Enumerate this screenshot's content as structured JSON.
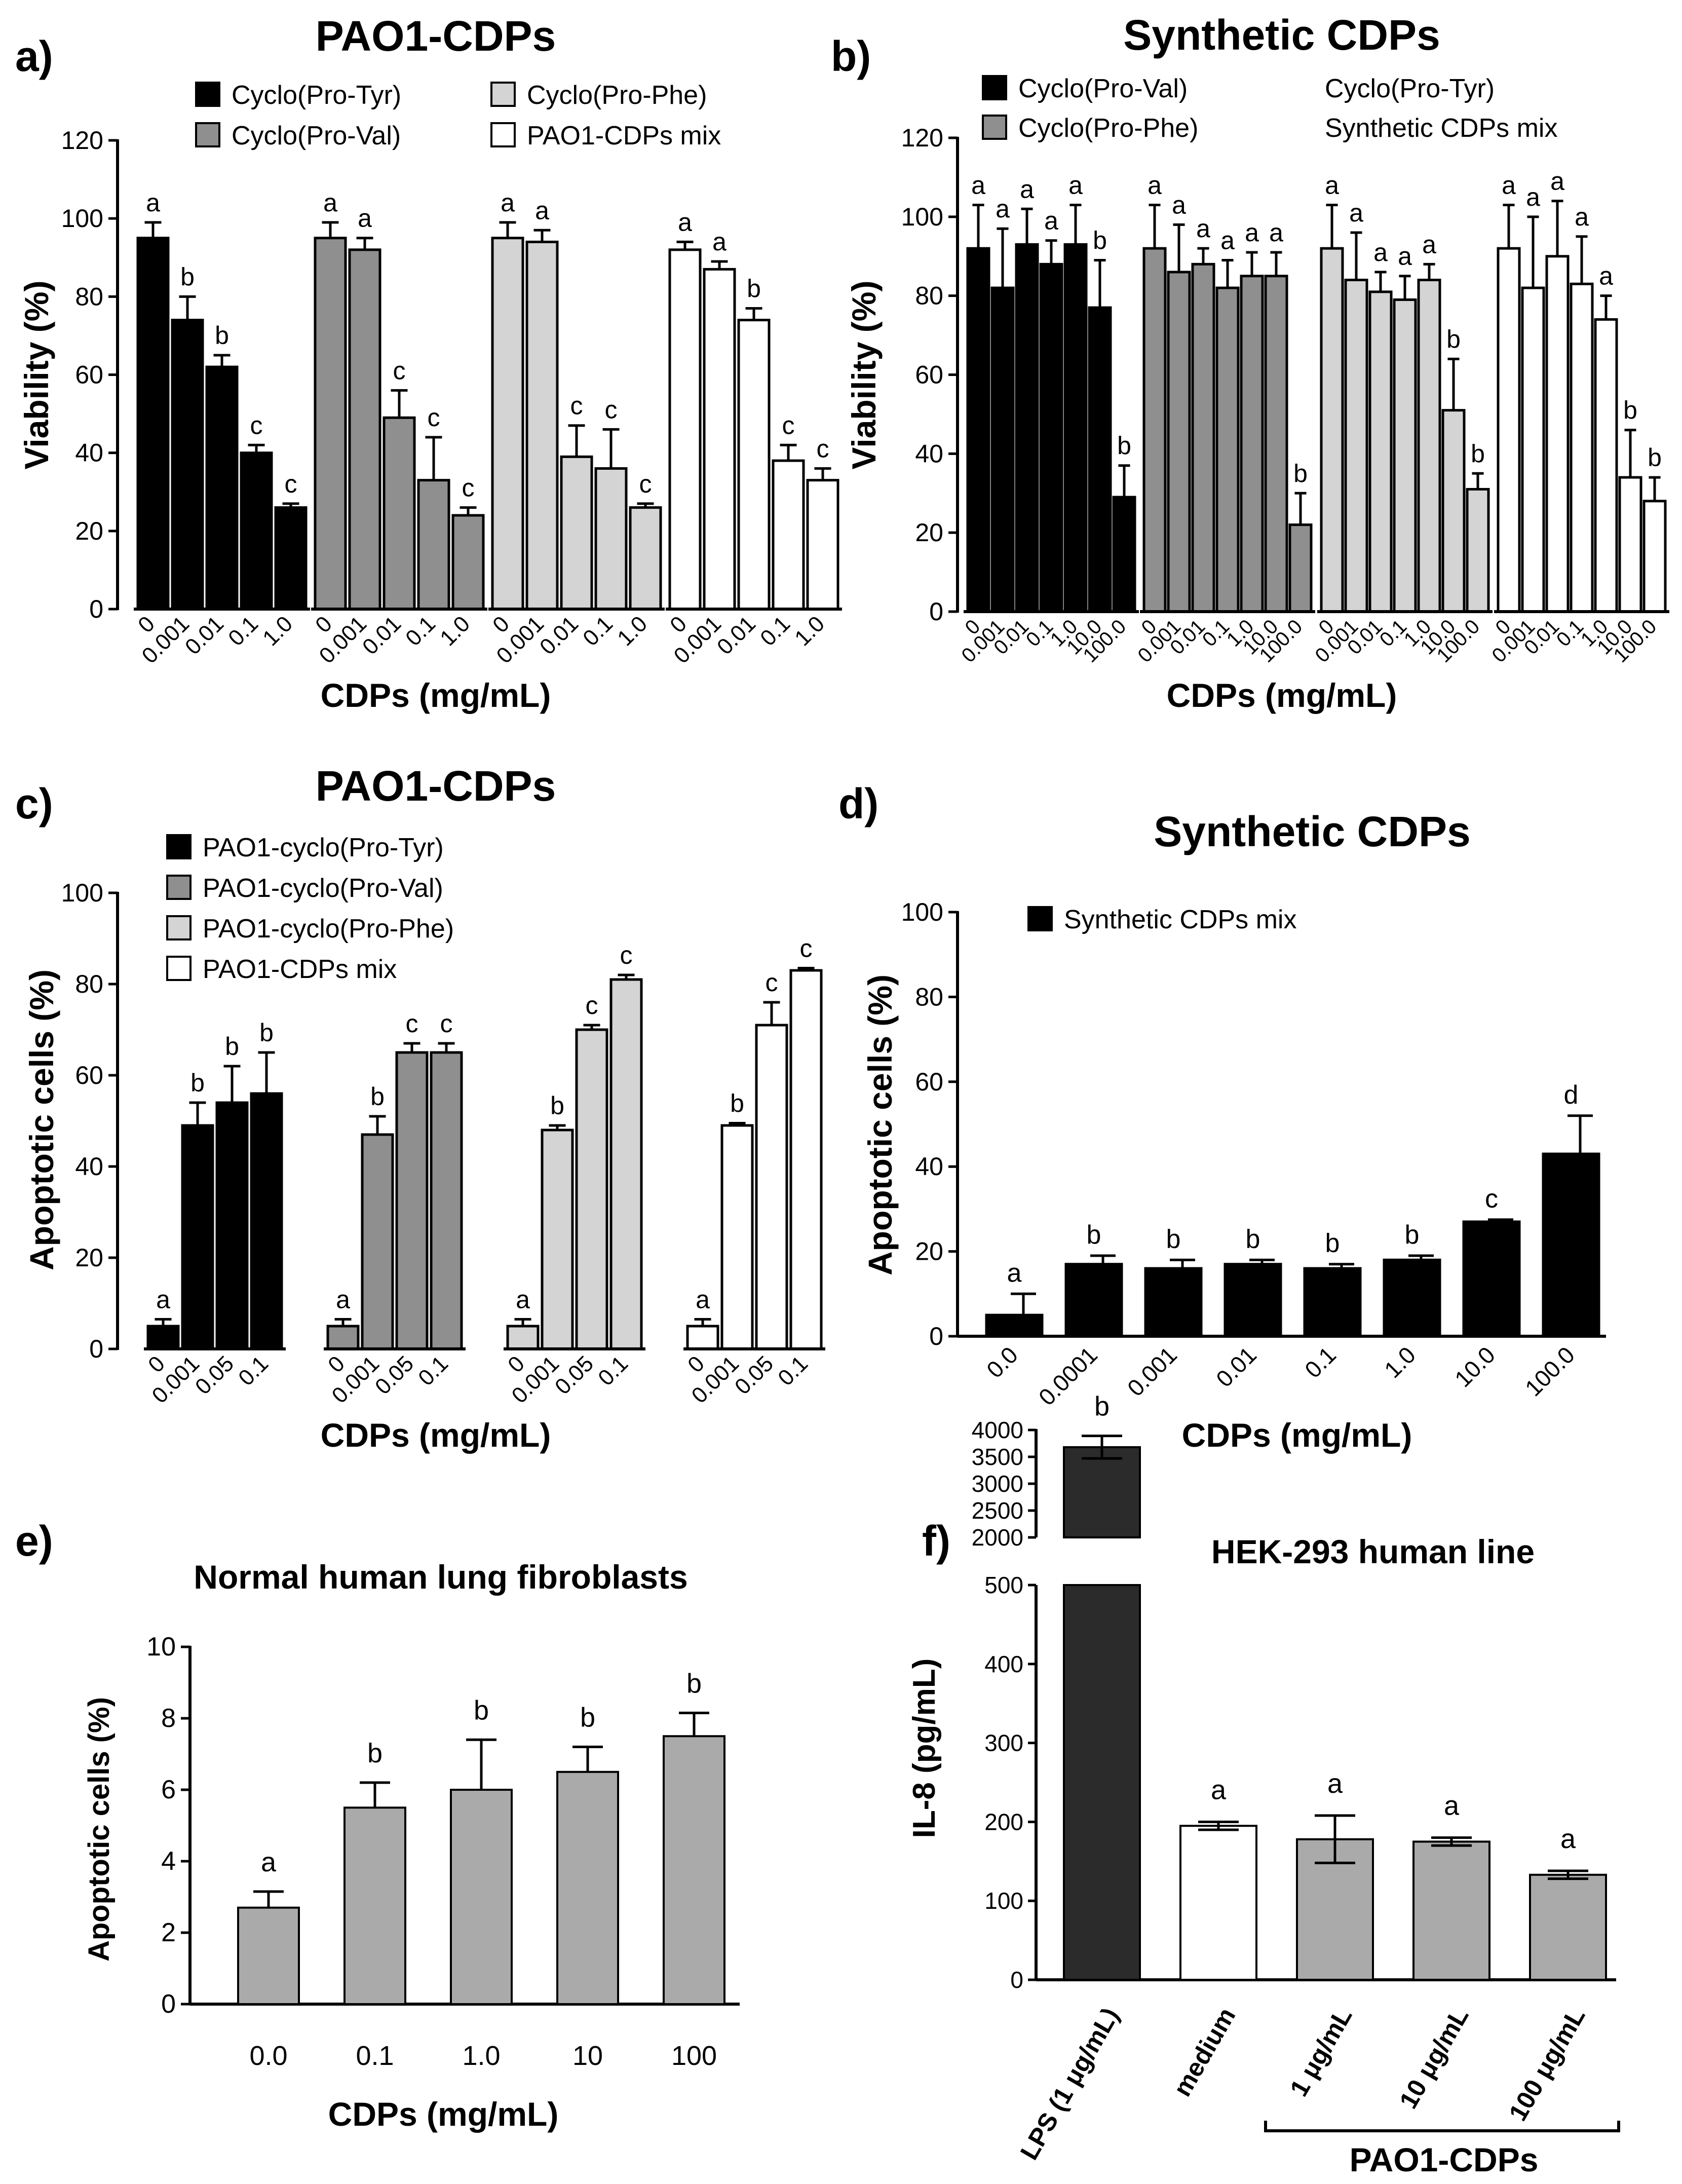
{
  "chart_data": [
    {
      "panel": "a)",
      "type": "bar",
      "title": "PAO1-CDPs",
      "ylabel": "Viability  (%)",
      "xlabel": "CDPs  (mg/mL)",
      "ylim": [
        0,
        120
      ],
      "yticks": [
        "0",
        "20",
        "40",
        "60",
        "80",
        "100",
        "120"
      ],
      "legend": [
        "Cyclo(Pro-Tyr)",
        "Cyclo(Pro-Val)",
        "Cyclo(Pro-Phe)",
        "PAO1-CDPs mix"
      ],
      "legend_placement": "top",
      "colors": [
        "#000000",
        "#8f8f8f",
        "#d4d4d4",
        "#ffffff"
      ],
      "groups": [
        {
          "series": "Cyclo(Pro-Tyr)",
          "categories": [
            "0",
            "0.001",
            "0.01",
            "0.1",
            "1.0"
          ],
          "values": [
            95,
            74,
            62,
            40,
            26
          ],
          "errors": [
            4,
            6,
            3,
            2,
            1
          ],
          "letters": [
            "a",
            "b",
            "b",
            "c",
            "c"
          ]
        },
        {
          "series": "Cyclo(Pro-Val)",
          "categories": [
            "0",
            "0.001",
            "0.01",
            "0.1",
            "1.0"
          ],
          "values": [
            95,
            92,
            49,
            33,
            24
          ],
          "errors": [
            4,
            3,
            7,
            11,
            2
          ],
          "letters": [
            "a",
            "a",
            "c",
            "c",
            "c"
          ]
        },
        {
          "series": "Cyclo(Pro-Phe)",
          "categories": [
            "0",
            "0.001",
            "0.01",
            "0.1",
            "1.0"
          ],
          "values": [
            95,
            94,
            39,
            36,
            26
          ],
          "errors": [
            4,
            3,
            8,
            10,
            1
          ],
          "letters": [
            "a",
            "a",
            "c",
            "c",
            "c"
          ]
        },
        {
          "series": "PAO1-CDPs mix",
          "categories": [
            "0",
            "0.001",
            "0.01",
            "0.1",
            "1.0"
          ],
          "values": [
            92,
            87,
            74,
            38,
            33
          ],
          "errors": [
            2,
            2,
            3,
            4,
            3
          ],
          "letters": [
            "a",
            "a",
            "b",
            "c",
            "c"
          ]
        }
      ]
    },
    {
      "panel": "b)",
      "type": "bar",
      "title": "Synthetic CDPs",
      "ylabel": "Viability  (%)",
      "xlabel": "CDPs  (mg/mL)",
      "ylim": [
        0,
        120
      ],
      "yticks": [
        "0",
        "20",
        "40",
        "60",
        "80",
        "100",
        "120"
      ],
      "legend": [
        "Cyclo(Pro-Val)",
        "Cyclo(Pro-Phe)",
        "Cyclo(Pro-Tyr)",
        "Synthetic CDPs mix"
      ],
      "legend_placement": "top",
      "colors": [
        "#000000",
        "#8f8f8f",
        "#d4d4d4",
        "#ffffff"
      ],
      "groups": [
        {
          "series": "Cyclo(Pro-Val)",
          "categories": [
            "0",
            "0.001",
            "0.01",
            "0.1",
            "1.0",
            "10.0",
            "100.0"
          ],
          "values": [
            92,
            82,
            93,
            88,
            93,
            77,
            29
          ],
          "errors": [
            11,
            15,
            9,
            6,
            10,
            12,
            8
          ],
          "letters": [
            "a",
            "a",
            "a",
            "a",
            "a",
            "b",
            "b"
          ]
        },
        {
          "series": "Cyclo(Pro-Phe)",
          "categories": [
            "0",
            "0.001",
            "0.01",
            "0.1",
            "1.0",
            "10.0",
            "100.0"
          ],
          "values": [
            92,
            86,
            88,
            82,
            85,
            85,
            22
          ],
          "errors": [
            11,
            12,
            4,
            7,
            6,
            6,
            8
          ],
          "letters": [
            "a",
            "a",
            "a",
            "a",
            "a",
            "a",
            "b"
          ]
        },
        {
          "series": "Cyclo(Pro-Tyr)",
          "categories": [
            "0",
            "0.001",
            "0.01",
            "0.1",
            "1.0",
            "10.0",
            "100.0"
          ],
          "values": [
            92,
            84,
            81,
            79,
            84,
            51,
            31
          ],
          "errors": [
            11,
            12,
            5,
            6,
            4,
            13,
            4
          ],
          "letters": [
            "a",
            "a",
            "a",
            "a",
            "a",
            "b",
            "b"
          ]
        },
        {
          "series": "Synthetic CDPs mix",
          "categories": [
            "0",
            "0.001",
            "0.01",
            "0.1",
            "1.0",
            "10.0",
            "100.0"
          ],
          "values": [
            92,
            82,
            90,
            83,
            74,
            34,
            28
          ],
          "errors": [
            11,
            18,
            14,
            12,
            6,
            12,
            6
          ],
          "letters": [
            "a",
            "a",
            "a",
            "a",
            "a",
            "b",
            "b"
          ]
        }
      ]
    },
    {
      "panel": "c)",
      "type": "bar",
      "title": "PAO1-CDPs",
      "ylabel": "Apoptotic cells (%)",
      "xlabel": "CDPs  (mg/mL)",
      "ylim": [
        0,
        100
      ],
      "yticks": [
        "0",
        "20",
        "40",
        "60",
        "80",
        "100"
      ],
      "legend": [
        "PAO1-cyclo(Pro-Tyr)",
        "PAO1-cyclo(Pro-Val)",
        "PAO1-cyclo(Pro-Phe)",
        "PAO1-CDPs mix"
      ],
      "legend_placement": "top-left",
      "colors": [
        "#000000",
        "#8f8f8f",
        "#d4d4d4",
        "#ffffff"
      ],
      "groups": [
        {
          "series": "PAO1-cyclo(Pro-Tyr)",
          "categories": [
            "0",
            "0.001",
            "0.05",
            "0.1"
          ],
          "values": [
            5,
            49,
            54,
            56
          ],
          "errors": [
            1.5,
            5,
            8,
            9
          ],
          "letters": [
            "a",
            "b",
            "b",
            "b"
          ]
        },
        {
          "series": "PAO1-cyclo(Pro-Val)",
          "categories": [
            "0",
            "0.001",
            "0.05",
            "0.1"
          ],
          "values": [
            5,
            47,
            65,
            65
          ],
          "errors": [
            1.5,
            4,
            2,
            2
          ],
          "letters": [
            "a",
            "b",
            "c",
            "c"
          ]
        },
        {
          "series": "PAO1-cyclo(Pro-Phe)",
          "categories": [
            "0",
            "0.001",
            "0.05",
            "0.1"
          ],
          "values": [
            5,
            48,
            70,
            81
          ],
          "errors": [
            1.5,
            1,
            1,
            1
          ],
          "letters": [
            "a",
            "b",
            "c",
            "c"
          ]
        },
        {
          "series": "PAO1-CDPs mix",
          "categories": [
            "0",
            "0.001",
            "0.05",
            "0.1"
          ],
          "values": [
            5,
            49,
            71,
            83
          ],
          "errors": [
            1.5,
            0.5,
            5,
            0.5
          ],
          "letters": [
            "a",
            "b",
            "c",
            "c"
          ]
        }
      ]
    },
    {
      "panel": "d)",
      "type": "bar",
      "title": "Synthetic CDPs",
      "ylabel": "Apoptotic cells (%)",
      "xlabel": "CDPs  (mg/mL)",
      "ylim": [
        0,
        100
      ],
      "yticks": [
        "0",
        "20",
        "40",
        "60",
        "80",
        "100"
      ],
      "legend": [
        "Synthetic CDPs mix"
      ],
      "legend_placement": "top-left",
      "colors": [
        "#000000"
      ],
      "categories": [
        "0.0",
        "0.0001",
        "0.001",
        "0.01",
        "0.1",
        "1.0",
        "10.0",
        "100.0"
      ],
      "values": [
        5,
        17,
        16,
        17,
        16,
        18,
        27,
        43
      ],
      "errors": [
        5,
        2,
        2,
        1,
        1,
        1,
        0.5,
        9
      ],
      "letters": [
        "a",
        "b",
        "b",
        "b",
        "b",
        "b",
        "c",
        "d"
      ]
    },
    {
      "panel": "e)",
      "type": "bar",
      "title": "Normal human lung fibroblasts",
      "ylabel": "Apoptotic cells (%)",
      "xlabel": "CDPs  (mg/mL)",
      "ylim": [
        0,
        10
      ],
      "yticks": [
        "0",
        "2",
        "4",
        "6",
        "8",
        "10"
      ],
      "colors": [
        "#aaaaaa"
      ],
      "categories": [
        "0.0",
        "0.1",
        "1.0",
        "10",
        "100"
      ],
      "values": [
        2.7,
        5.5,
        6.0,
        6.5,
        7.5
      ],
      "errors": [
        0.45,
        0.7,
        1.4,
        0.7,
        0.65
      ],
      "letters": [
        "a",
        "b",
        "b",
        "b",
        "b"
      ]
    },
    {
      "panel": "f)",
      "type": "bar",
      "title": "HEK-293 human line",
      "ylabel": "IL-8 (pg/mL)",
      "xlabel": "PAO1-CDPs",
      "axis_break": [
        500,
        2000
      ],
      "yticks_lower": [
        "0",
        "100",
        "200",
        "300",
        "400",
        "500"
      ],
      "yticks_upper": [
        "2000",
        "2500",
        "3000",
        "3500",
        "4000"
      ],
      "categories": [
        "LPS (1 μg/mL)",
        "medium",
        "1 μg/mL",
        "10 μg/mL",
        "100 μg/mL"
      ],
      "values": [
        3680,
        195,
        178,
        175,
        133
      ],
      "errors": [
        210,
        5,
        30,
        5,
        5
      ],
      "letters": [
        "b",
        "a",
        "a",
        "a",
        "a"
      ],
      "colors": [
        "#2b2b2b",
        "#ffffff",
        "#aaaaaa",
        "#aaaaaa",
        "#aaaaaa"
      ]
    }
  ]
}
